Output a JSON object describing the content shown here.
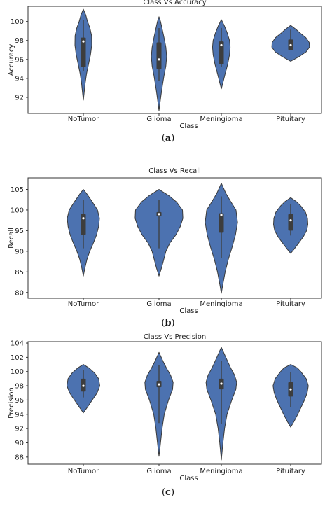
{
  "chart_data": [
    {
      "type": "violin",
      "panel": "a",
      "title": "Class Vs Accuracy",
      "xlabel": "Class",
      "ylabel": "Accuracy",
      "categories": [
        "NoTumor",
        "Glioma",
        "Meningioma",
        "Pituitary"
      ],
      "yticks": [
        92,
        94,
        96,
        98,
        100
      ],
      "ylim": [
        90.3,
        101.6
      ],
      "violins": [
        {
          "min": 91.7,
          "max": 101.3,
          "q1": 95.2,
          "median": 97.9,
          "q3": 98.3,
          "profile": [
            [
              91.7,
              0
            ],
            [
              92.5,
              0.1
            ],
            [
              93.5,
              0.22
            ],
            [
              94.5,
              0.38
            ],
            [
              95.5,
              0.62
            ],
            [
              96.5,
              0.85
            ],
            [
              97.5,
              1
            ],
            [
              98.5,
              0.98
            ],
            [
              99.3,
              0.78
            ],
            [
              100,
              0.5
            ],
            [
              100.7,
              0.28
            ],
            [
              101.3,
              0
            ]
          ]
        },
        {
          "min": 90.6,
          "max": 100.5,
          "q1": 95.0,
          "median": 96.0,
          "q3": 97.8,
          "profile": [
            [
              90.6,
              0
            ],
            [
              91.3,
              0.1
            ],
            [
              92.3,
              0.25
            ],
            [
              93.3,
              0.42
            ],
            [
              94.3,
              0.6
            ],
            [
              95.3,
              0.82
            ],
            [
              96.3,
              0.92
            ],
            [
              97.3,
              0.82
            ],
            [
              98.3,
              0.6
            ],
            [
              99.3,
              0.36
            ],
            [
              100,
              0.18
            ],
            [
              100.5,
              0
            ]
          ]
        },
        {
          "min": 92.9,
          "max": 100.2,
          "q1": 95.5,
          "median": 97.5,
          "q3": 97.9,
          "profile": [
            [
              92.9,
              0
            ],
            [
              93.5,
              0.16
            ],
            [
              94.5,
              0.42
            ],
            [
              95.5,
              0.7
            ],
            [
              96.5,
              0.9
            ],
            [
              97.3,
              0.97
            ],
            [
              98,
              0.9
            ],
            [
              98.8,
              0.65
            ],
            [
              99.5,
              0.35
            ],
            [
              100.2,
              0
            ]
          ]
        },
        {
          "min": 95.8,
          "max": 99.6,
          "q1": 97.0,
          "median": 97.5,
          "q3": 98.1,
          "profile": [
            [
              95.8,
              0
            ],
            [
              96.3,
              0.5
            ],
            [
              96.8,
              0.92
            ],
            [
              97.3,
              1.12
            ],
            [
              97.8,
              1.1
            ],
            [
              98.3,
              0.9
            ],
            [
              98.8,
              0.55
            ],
            [
              99.2,
              0.3
            ],
            [
              99.6,
              0
            ]
          ]
        }
      ]
    },
    {
      "type": "violin",
      "panel": "b",
      "title": "Class Vs Recall",
      "xlabel": "Class",
      "ylabel": "Recall",
      "categories": [
        "NoTumor",
        "Glioma",
        "Meningioma",
        "Pituitary"
      ],
      "yticks": [
        80,
        85,
        90,
        95,
        100,
        105
      ],
      "ylim": [
        78.6,
        107.8
      ],
      "violins": [
        {
          "min": 84.0,
          "max": 105.0,
          "q1": 94.0,
          "median": 98.0,
          "q3": 99.0,
          "profile": [
            [
              84,
              0
            ],
            [
              86,
              0.1
            ],
            [
              88,
              0.22
            ],
            [
              90,
              0.4
            ],
            [
              92,
              0.62
            ],
            [
              94,
              0.82
            ],
            [
              96,
              0.95
            ],
            [
              98,
              1
            ],
            [
              100,
              0.88
            ],
            [
              102,
              0.55
            ],
            [
              104,
              0.2
            ],
            [
              105,
              0
            ]
          ]
        },
        {
          "min": 84.0,
          "max": 105.0,
          "q1": 98.5,
          "median": 99.0,
          "q3": 99.5,
          "profile": [
            [
              84,
              0
            ],
            [
              86,
              0.12
            ],
            [
              88,
              0.22
            ],
            [
              90,
              0.32
            ],
            [
              92,
              0.5
            ],
            [
              94,
              0.78
            ],
            [
              96,
              0.98
            ],
            [
              98,
              1.1
            ],
            [
              100,
              1.08
            ],
            [
              102,
              0.8
            ],
            [
              103.5,
              0.45
            ],
            [
              105,
              0
            ]
          ]
        },
        {
          "min": 79.8,
          "max": 106.5,
          "q1": 94.5,
          "median": 98.8,
          "q3": 99.2,
          "profile": [
            [
              79.8,
              0
            ],
            [
              82,
              0.1
            ],
            [
              85,
              0.25
            ],
            [
              88,
              0.45
            ],
            [
              91,
              0.7
            ],
            [
              94,
              0.92
            ],
            [
              97,
              1.05
            ],
            [
              100,
              0.95
            ],
            [
              102,
              0.62
            ],
            [
              104,
              0.3
            ],
            [
              106.5,
              0
            ]
          ]
        },
        {
          "min": 89.5,
          "max": 103.0,
          "q1": 95.0,
          "median": 97.5,
          "q3": 99.0,
          "profile": [
            [
              89.5,
              0
            ],
            [
              90.5,
              0.2
            ],
            [
              92,
              0.48
            ],
            [
              93.5,
              0.75
            ],
            [
              95,
              0.95
            ],
            [
              96.5,
              1.02
            ],
            [
              98,
              1
            ],
            [
              99.5,
              0.88
            ],
            [
              101,
              0.6
            ],
            [
              102,
              0.35
            ],
            [
              103,
              0
            ]
          ]
        }
      ]
    },
    {
      "type": "violin",
      "panel": "c",
      "title": "Class Vs Precision",
      "xlabel": "Class",
      "ylabel": "Precision",
      "categories": [
        "NoTumor",
        "Glioma",
        "Meningioma",
        "Pituitary"
      ],
      "yticks": [
        88,
        90,
        92,
        94,
        96,
        98,
        100,
        102,
        104
      ],
      "ylim": [
        87.0,
        104.2
      ],
      "violins": [
        {
          "min": 94.2,
          "max": 101.0,
          "q1": 97.2,
          "median": 98.0,
          "q3": 99.0,
          "profile": [
            [
              94.2,
              0
            ],
            [
              95,
              0.25
            ],
            [
              96,
              0.55
            ],
            [
              97,
              0.85
            ],
            [
              98,
              1.02
            ],
            [
              99,
              0.95
            ],
            [
              99.8,
              0.7
            ],
            [
              100.5,
              0.35
            ],
            [
              101,
              0
            ]
          ]
        },
        {
          "min": 88.1,
          "max": 102.7,
          "q1": 97.8,
          "median": 98.2,
          "q3": 98.7,
          "profile": [
            [
              88.1,
              0
            ],
            [
              90,
              0.1
            ],
            [
              92,
              0.2
            ],
            [
              94,
              0.34
            ],
            [
              96,
              0.62
            ],
            [
              97.5,
              0.88
            ],
            [
              98.5,
              0.92
            ],
            [
              99.5,
              0.75
            ],
            [
              100.5,
              0.48
            ],
            [
              101.5,
              0.25
            ],
            [
              102.7,
              0
            ]
          ]
        },
        {
          "min": 87.6,
          "max": 103.4,
          "q1": 97.5,
          "median": 98.3,
          "q3": 99.0,
          "profile": [
            [
              87.6,
              0
            ],
            [
              90,
              0.1
            ],
            [
              92,
              0.2
            ],
            [
              94,
              0.35
            ],
            [
              96,
              0.65
            ],
            [
              97.5,
              0.9
            ],
            [
              98.5,
              0.95
            ],
            [
              99.5,
              0.82
            ],
            [
              100.5,
              0.58
            ],
            [
              102,
              0.28
            ],
            [
              103.4,
              0
            ]
          ]
        },
        {
          "min": 92.2,
          "max": 101.0,
          "q1": 96.5,
          "median": 97.5,
          "q3": 98.5,
          "profile": [
            [
              92.2,
              0
            ],
            [
              93,
              0.2
            ],
            [
              94,
              0.42
            ],
            [
              95,
              0.62
            ],
            [
              96,
              0.82
            ],
            [
              97,
              0.98
            ],
            [
              98,
              1.05
            ],
            [
              99,
              0.92
            ],
            [
              100,
              0.6
            ],
            [
              100.5,
              0.4
            ],
            [
              101,
              0
            ]
          ]
        }
      ]
    }
  ],
  "panel_labels": [
    "a",
    "b",
    "c"
  ],
  "colors": {
    "violin": "#4c72b0",
    "violin_edge": "#3a3a3a",
    "box": "#3d3d3d",
    "median": "#ffffff",
    "axes": "#333333"
  }
}
